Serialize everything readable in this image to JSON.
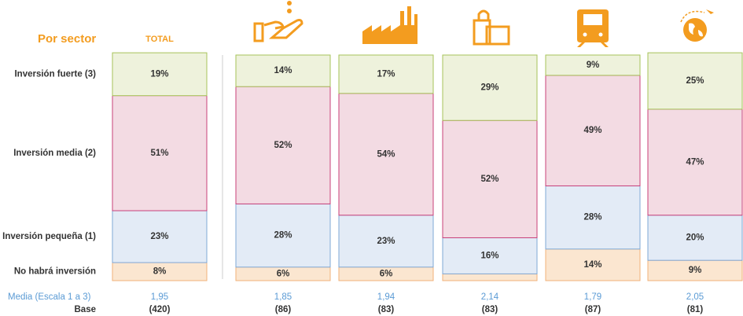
{
  "chart_data": {
    "type": "stacked-bar",
    "title": "Por sector",
    "categories": [
      "TOTAL",
      null,
      null,
      null,
      null,
      null
    ],
    "series": [
      {
        "name": "No habrá inversión",
        "color": "#f0b27a",
        "fill": "#fbe6d0",
        "values": [
          8,
          6,
          6,
          3,
          14,
          9
        ],
        "value_labels": [
          "8%",
          "6%",
          "6%",
          null,
          "14%",
          "9%"
        ]
      },
      {
        "name": "Inversión pequeña (1)",
        "color": "#7fa8d6",
        "fill": "#e3ebf6",
        "values": [
          23,
          28,
          23,
          16,
          28,
          20
        ],
        "value_labels": [
          "23%",
          "28%",
          "23%",
          "16%",
          "28%",
          "20%"
        ]
      },
      {
        "name": "Inversión media (2)",
        "color": "#c9417a",
        "fill": "#f3dbe3",
        "values": [
          51,
          52,
          54,
          52,
          49,
          47
        ],
        "value_labels": [
          "51%",
          "52%",
          "54%",
          "52%",
          "49%",
          "47%"
        ]
      },
      {
        "name": "Inversión fuerte (3)",
        "color": "#a7c35a",
        "fill": "#eef2dc",
        "values": [
          19,
          14,
          17,
          29,
          9,
          25
        ],
        "value_labels": [
          "19%",
          "14%",
          "17%",
          "29%",
          "9%",
          "25%"
        ]
      }
    ],
    "mean_label": "Media (Escala 1 a 3)",
    "means": [
      "1,95",
      "1,85",
      "1,94",
      "2,14",
      "1,79",
      "2,05"
    ],
    "base_label": "Base",
    "bases": [
      "(420)",
      "(86)",
      "(83)",
      "(83)",
      "(87)",
      "(81)"
    ]
  }
}
